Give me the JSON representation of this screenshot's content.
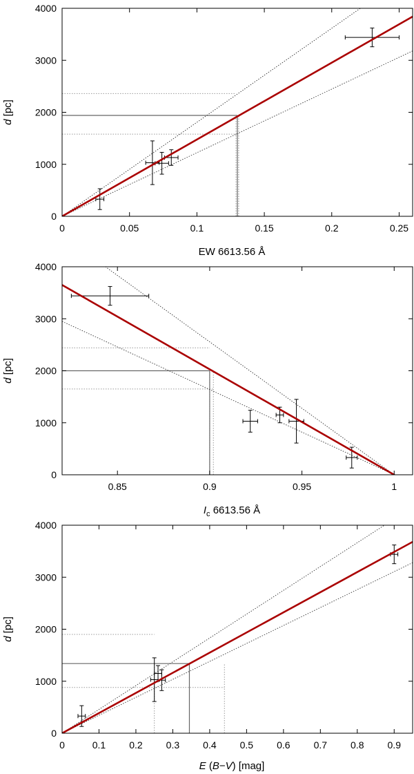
{
  "colors": {
    "fit": "#aa0000",
    "envelope": "#333333",
    "axis": "#000000",
    "guide": "#666666",
    "guide_dotted": "#999999"
  },
  "chart_data": [
    {
      "type": "scatter",
      "xlabel": {
        "main": "EW 6613.56 Å"
      },
      "ylabel": {
        "italic": "d",
        "rest": " [pc]"
      },
      "xlim": [
        0,
        0.26
      ],
      "ylim": [
        0,
        4000
      ],
      "xticks": [
        0,
        0.05,
        0.1,
        0.15,
        0.2,
        0.25
      ],
      "xtick_labels": [
        "0",
        "0.05",
        "0.1",
        "0.15",
        "0.2",
        "0.25"
      ],
      "yticks": [
        0,
        1000,
        2000,
        3000,
        4000
      ],
      "ytick_labels": [
        "0",
        "1000",
        "2000",
        "3000",
        "4000"
      ],
      "points": [
        {
          "x": 0.028,
          "y": 330,
          "xerr": 0.003,
          "yerr": 200
        },
        {
          "x": 0.067,
          "y": 1030,
          "xerr": 0.005,
          "yerr": 420
        },
        {
          "x": 0.074,
          "y": 1020,
          "xerr": 0.005,
          "yerr": 210
        },
        {
          "x": 0.081,
          "y": 1130,
          "xerr": 0.005,
          "yerr": 150
        },
        {
          "x": 0.23,
          "y": 3440,
          "xerr": 0.02,
          "yerr": 180
        }
      ],
      "fit": {
        "x": [
          0,
          0.26
        ],
        "y": [
          0,
          3840
        ]
      },
      "bounds": [
        {
          "x": [
            0,
            0.26
          ],
          "y": [
            0,
            4700
          ]
        },
        {
          "x": [
            0,
            0.26
          ],
          "y": [
            0,
            3180
          ]
        }
      ],
      "guide": {
        "x": 0.13,
        "y": 1940
      },
      "guide_dotted": {
        "x": [
          0.129,
          0.131
        ],
        "y": [
          2360,
          1580
        ]
      }
    },
    {
      "type": "scatter",
      "xlabel": {
        "italic": "I",
        "sub": "c",
        "rest": " 6613.56 Å"
      },
      "ylabel": {
        "italic": "d",
        "rest": " [pc]"
      },
      "xlim": [
        0.82,
        1.01
      ],
      "ylim": [
        0,
        4000
      ],
      "xticks": [
        0.85,
        0.9,
        0.95,
        1
      ],
      "xtick_labels": [
        "0.85",
        "0.9",
        "0.95",
        "1"
      ],
      "yticks": [
        0,
        1000,
        2000,
        3000,
        4000
      ],
      "ytick_labels": [
        "0",
        "1000",
        "2000",
        "3000",
        "4000"
      ],
      "points": [
        {
          "x": 0.846,
          "y": 3440,
          "xerr": 0.021,
          "yerr": 180
        },
        {
          "x": 0.922,
          "y": 1030,
          "xerr": 0.004,
          "yerr": 210
        },
        {
          "x": 0.938,
          "y": 1150,
          "xerr": 0.002,
          "yerr": 150
        },
        {
          "x": 0.947,
          "y": 1030,
          "xerr": 0.004,
          "yerr": 420
        },
        {
          "x": 0.977,
          "y": 330,
          "xerr": 0.003,
          "yerr": 200
        }
      ],
      "fit": {
        "x": [
          0.82,
          1.0
        ],
        "y": [
          3650,
          0
        ]
      },
      "bounds": [
        {
          "x": [
            0.82,
            1.0
          ],
          "y": [
            4600,
            0
          ]
        },
        {
          "x": [
            0.82,
            1.0
          ],
          "y": [
            2950,
            0
          ]
        }
      ],
      "guide": {
        "x": 0.9,
        "y": 2000
      },
      "guide_dotted": {
        "x": [
          0.9,
          0.902
        ],
        "y": [
          2440,
          1650
        ]
      }
    },
    {
      "type": "scatter",
      "xlabel": {
        "italic": "E",
        "rest": " (",
        "italic2": "B",
        "rest2": "−",
        "italic3": "V",
        "rest3": ") [mag]"
      },
      "ylabel": {
        "italic": "d",
        "rest": " [pc]"
      },
      "xlim": [
        0,
        0.95
      ],
      "ylim": [
        0,
        4000
      ],
      "xticks": [
        0,
        0.1,
        0.2,
        0.3,
        0.4,
        0.5,
        0.6,
        0.7,
        0.8,
        0.9
      ],
      "xtick_labels": [
        "0",
        "0.1",
        "0.2",
        "0.3",
        "0.4",
        "0.5",
        "0.6",
        "0.7",
        "0.8",
        "0.9"
      ],
      "yticks": [
        0,
        1000,
        2000,
        3000,
        4000
      ],
      "ytick_labels": [
        "0",
        "1000",
        "2000",
        "3000",
        "4000"
      ],
      "points": [
        {
          "x": 0.053,
          "y": 330,
          "xerr": 0.01,
          "yerr": 200
        },
        {
          "x": 0.25,
          "y": 1030,
          "xerr": 0.01,
          "yerr": 420
        },
        {
          "x": 0.26,
          "y": 1150,
          "xerr": 0.01,
          "yerr": 150
        },
        {
          "x": 0.27,
          "y": 1020,
          "xerr": 0.01,
          "yerr": 200
        },
        {
          "x": 0.9,
          "y": 3440,
          "xerr": 0.01,
          "yerr": 180
        }
      ],
      "fit": {
        "x": [
          0,
          0.95
        ],
        "y": [
          0,
          3680
        ]
      },
      "bounds": [
        {
          "x": [
            0,
            0.95
          ],
          "y": [
            0,
            4350
          ]
        },
        {
          "x": [
            0,
            0.95
          ],
          "y": [
            0,
            3280
          ]
        }
      ],
      "guide": {
        "x": 0.345,
        "y": 1340
      },
      "guide_dotted": {
        "x": [
          0.25,
          0.44
        ],
        "y": [
          1900,
          880
        ]
      }
    }
  ]
}
